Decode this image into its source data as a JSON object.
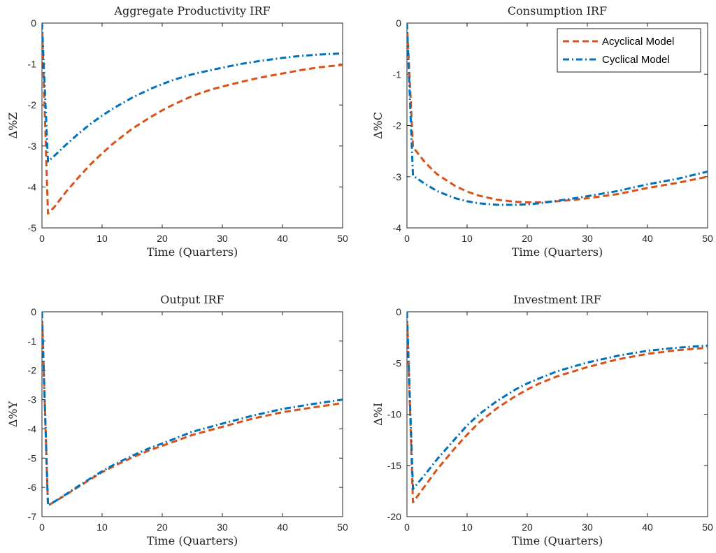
{
  "chart_data": [
    {
      "type": "line",
      "title": "Aggregate Productivity IRF",
      "xlabel": "Time (Quarters)",
      "ylabel": "Δ%Z",
      "xlim": [
        0,
        50
      ],
      "ylim": [
        -5,
        0
      ],
      "xticks": [
        0,
        10,
        20,
        30,
        40,
        50
      ],
      "yticks": [
        -5,
        -4,
        -3,
        -2,
        -1,
        0
      ],
      "legend": null,
      "series": [
        {
          "name": "Acyclical Model",
          "color": "#D95319",
          "dash": "dashed",
          "x": [
            0,
            1,
            2,
            4,
            6,
            8,
            10,
            12,
            15,
            18,
            20,
            22,
            25,
            28,
            30,
            33,
            36,
            40,
            43,
            46,
            50
          ],
          "y": [
            0,
            -4.65,
            -4.5,
            -4.12,
            -3.78,
            -3.46,
            -3.18,
            -2.92,
            -2.58,
            -2.3,
            -2.13,
            -1.98,
            -1.78,
            -1.63,
            -1.55,
            -1.44,
            -1.34,
            -1.23,
            -1.15,
            -1.08,
            -1.02
          ]
        },
        {
          "name": "Cyclical Model",
          "color": "#0072BD",
          "dash": "dashdot",
          "x": [
            0,
            1,
            2,
            4,
            6,
            8,
            10,
            12,
            15,
            18,
            20,
            22,
            25,
            28,
            30,
            33,
            36,
            40,
            43,
            46,
            50
          ],
          "y": [
            0,
            -3.38,
            -3.25,
            -2.97,
            -2.71,
            -2.47,
            -2.26,
            -2.07,
            -1.82,
            -1.61,
            -1.49,
            -1.38,
            -1.25,
            -1.15,
            -1.09,
            -1.0,
            -0.93,
            -0.85,
            -0.8,
            -0.77,
            -0.74
          ]
        }
      ]
    },
    {
      "type": "line",
      "title": "Consumption IRF",
      "xlabel": "Time (Quarters)",
      "ylabel": "Δ%C",
      "xlim": [
        0,
        50
      ],
      "ylim": [
        -4,
        0
      ],
      "xticks": [
        0,
        10,
        20,
        30,
        40,
        50
      ],
      "yticks": [
        -4,
        -3,
        -2,
        -1,
        0
      ],
      "legend": "top-right",
      "series": [
        {
          "name": "Acyclical Model",
          "color": "#D95319",
          "dash": "dashed",
          "x": [
            0,
            1,
            3,
            5,
            8,
            10,
            12,
            15,
            18,
            20,
            22,
            25,
            28,
            30,
            35,
            40,
            45,
            50
          ],
          "y": [
            0,
            -2.42,
            -2.72,
            -2.95,
            -3.18,
            -3.29,
            -3.37,
            -3.45,
            -3.49,
            -3.5,
            -3.5,
            -3.48,
            -3.45,
            -3.42,
            -3.34,
            -3.22,
            -3.12,
            -3.0
          ]
        },
        {
          "name": "Cyclical Model",
          "color": "#0072BD",
          "dash": "dashdot",
          "x": [
            0,
            1,
            3,
            5,
            8,
            10,
            12,
            15,
            18,
            20,
            22,
            25,
            28,
            30,
            35,
            40,
            45,
            50
          ],
          "y": [
            0,
            -2.98,
            -3.14,
            -3.28,
            -3.42,
            -3.48,
            -3.52,
            -3.55,
            -3.55,
            -3.54,
            -3.52,
            -3.47,
            -3.42,
            -3.38,
            -3.28,
            -3.15,
            -3.04,
            -2.9
          ]
        }
      ]
    },
    {
      "type": "line",
      "title": "Output IRF",
      "xlabel": "Time (Quarters)",
      "ylabel": "Δ%Y",
      "xlim": [
        0,
        50
      ],
      "ylim": [
        -7,
        0
      ],
      "xticks": [
        0,
        10,
        20,
        30,
        40,
        50
      ],
      "yticks": [
        -7,
        -6,
        -5,
        -4,
        -3,
        -2,
        -1,
        0
      ],
      "legend": null,
      "series": [
        {
          "name": "Acyclical Model",
          "color": "#D95319",
          "dash": "dashed",
          "x": [
            0,
            1,
            3,
            5,
            8,
            10,
            12,
            15,
            18,
            20,
            25,
            30,
            35,
            40,
            45,
            50
          ],
          "y": [
            0,
            -6.62,
            -6.38,
            -6.12,
            -5.73,
            -5.48,
            -5.27,
            -4.98,
            -4.72,
            -4.58,
            -4.21,
            -3.93,
            -3.65,
            -3.43,
            -3.27,
            -3.12
          ]
        },
        {
          "name": "Cyclical Model",
          "color": "#0072BD",
          "dash": "dashdot",
          "x": [
            0,
            1,
            3,
            5,
            8,
            10,
            12,
            15,
            18,
            20,
            25,
            30,
            35,
            40,
            45,
            50
          ],
          "y": [
            0,
            -6.62,
            -6.37,
            -6.1,
            -5.7,
            -5.45,
            -5.22,
            -4.92,
            -4.65,
            -4.5,
            -4.1,
            -3.82,
            -3.55,
            -3.32,
            -3.15,
            -3.0
          ]
        }
      ]
    },
    {
      "type": "line",
      "title": "Investment IRF",
      "xlabel": "Time (Quarters)",
      "ylabel": "Δ%I",
      "xlim": [
        0,
        50
      ],
      "ylim": [
        -20,
        0
      ],
      "xticks": [
        0,
        10,
        20,
        30,
        40,
        50
      ],
      "yticks": [
        -20,
        -15,
        -10,
        -5,
        0
      ],
      "legend": null,
      "series": [
        {
          "name": "Acyclical Model",
          "color": "#D95319",
          "dash": "dashed",
          "x": [
            0,
            1,
            3,
            5,
            8,
            10,
            12,
            15,
            18,
            20,
            22,
            25,
            30,
            35,
            40,
            45,
            50
          ],
          "y": [
            0,
            -18.6,
            -17.0,
            -15.4,
            -13.3,
            -12.0,
            -10.8,
            -9.4,
            -8.25,
            -7.6,
            -7.0,
            -6.3,
            -5.4,
            -4.65,
            -4.1,
            -3.75,
            -3.5
          ]
        },
        {
          "name": "Cyclical Model",
          "color": "#0072BD",
          "dash": "dashdot",
          "x": [
            0,
            1,
            3,
            5,
            8,
            10,
            12,
            15,
            18,
            20,
            22,
            25,
            30,
            35,
            40,
            45,
            50
          ],
          "y": [
            0,
            -17.3,
            -15.9,
            -14.4,
            -12.4,
            -11.1,
            -10.0,
            -8.7,
            -7.6,
            -7.0,
            -6.5,
            -5.8,
            -4.95,
            -4.3,
            -3.8,
            -3.5,
            -3.3
          ]
        }
      ]
    }
  ]
}
